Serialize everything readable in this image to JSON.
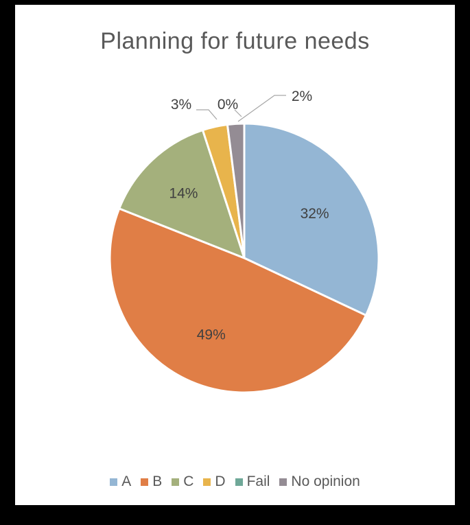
{
  "chart_data": {
    "type": "pie",
    "title": "Planning for future needs",
    "categories": [
      "A",
      "B",
      "C",
      "D",
      "Fail",
      "No opinion"
    ],
    "values": [
      32,
      49,
      14,
      3,
      0,
      2
    ],
    "labels": [
      "32%",
      "49%",
      "14%",
      "3%",
      "0%",
      "2%"
    ],
    "colors": [
      "#94b6d4",
      "#e07e46",
      "#a4b07c",
      "#e8b44c",
      "#6fa898",
      "#948c94"
    ],
    "legend_position": "bottom"
  }
}
